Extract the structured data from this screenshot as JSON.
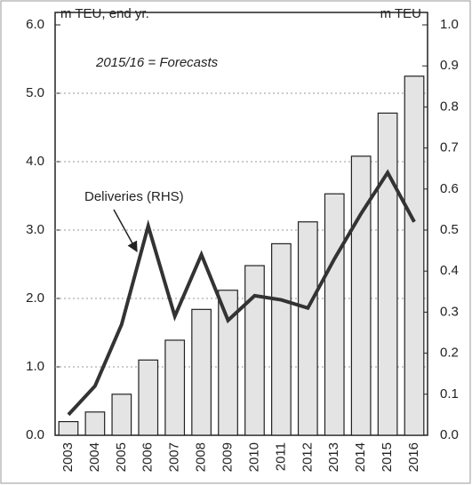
{
  "chart_data": {
    "type": "bar-line",
    "y_label": "m TEU, end yr.",
    "y2_label": "m TEU",
    "annotation": "2015/16 = Forecasts",
    "categories": [
      "2003",
      "2004",
      "2005",
      "2006",
      "2007",
      "2008",
      "2009",
      "2010",
      "2011",
      "2012",
      "2013",
      "2014",
      "2015",
      "2016"
    ],
    "series": [
      {
        "type": "bar",
        "color": "#e4e4e4",
        "values": [
          0.2,
          0.34,
          0.6,
          1.1,
          1.39,
          1.84,
          2.12,
          2.48,
          2.8,
          3.12,
          3.53,
          4.08,
          4.71,
          5.25
        ]
      },
      {
        "type": "line",
        "name": "Deliveries (RHS)",
        "axis": "y2",
        "color": "#333333",
        "values": [
          0.05,
          0.12,
          0.27,
          0.51,
          0.29,
          0.44,
          0.28,
          0.34,
          0.33,
          0.31,
          0.43,
          0.54,
          0.64,
          0.52
        ]
      }
    ],
    "ylim": [
      0,
      6
    ],
    "yticks": [
      {
        "value": 0,
        "label": "0.0"
      },
      {
        "value": 1,
        "label": "1.0"
      },
      {
        "value": 2,
        "label": "2.0"
      },
      {
        "value": 3,
        "label": "3.0"
      },
      {
        "value": 4,
        "label": "4.0"
      },
      {
        "value": 5,
        "label": "5.0"
      },
      {
        "value": 6,
        "label": "6.0"
      }
    ],
    "y2lim": [
      0,
      1
    ],
    "y2ticks": [
      {
        "value": 0,
        "label": "0.0"
      },
      0.1,
      0.2,
      0.3,
      0.4,
      0.5,
      0.6,
      0.7,
      0.8,
      0.9,
      {
        "value": 1,
        "label": "1.0"
      }
    ],
    "grid": true
  }
}
